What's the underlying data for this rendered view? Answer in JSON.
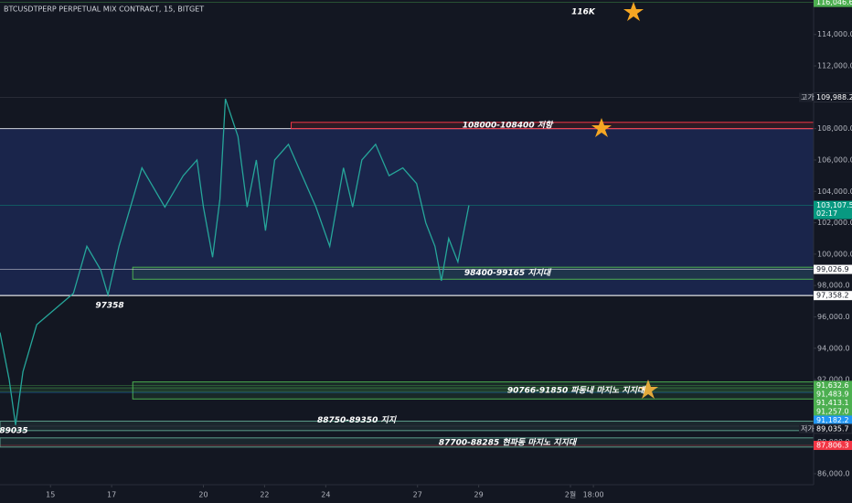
{
  "chart_data": {
    "type": "line",
    "title": "BTCUSDTPERP PERPETUAL MIX CONTRACT, 15, BITGET",
    "x": [
      13.35,
      13.65,
      13.86,
      14.1,
      14.55,
      15.15,
      15.75,
      16.19,
      16.64,
      16.88,
      17.24,
      17.54,
      17.99,
      18.29,
      18.74,
      19.34,
      19.79,
      20.0,
      20.3,
      20.54,
      20.72,
      21.13,
      21.43,
      21.73,
      22.03,
      22.33,
      22.78,
      23.23,
      23.68,
      24.13,
      24.58,
      24.88,
      25.18,
      25.63,
      26.07,
      26.52,
      26.97,
      27.27,
      27.57,
      27.78,
      28.02,
      28.32,
      28.68
    ],
    "series": [
      {
        "color": "#26a69a",
        "values": [
          95000,
          92000,
          89100,
          92500,
          95500,
          96500,
          97500,
          100500,
          99000,
          97400,
          100500,
          102500,
          105500,
          104500,
          103000,
          105000,
          106000,
          103000,
          99800,
          103500,
          109900,
          107500,
          103000,
          106000,
          101500,
          106000,
          107000,
          105000,
          103000,
          100500,
          105500,
          103000,
          106000,
          107000,
          105000,
          105500,
          104500,
          102000,
          100500,
          98300,
          101000,
          99500,
          103107.5
        ]
      }
    ],
    "xlim": [
      13.35,
      39.95
    ],
    "xticks": [
      15,
      17,
      20,
      22,
      24,
      27,
      29,
      {
        "value": 32,
        "label": "2월"
      },
      {
        "value": 32.75,
        "label": "18:00"
      }
    ],
    "ylim": [
      85300,
      116200
    ],
    "yticks": [
      {
        "value": 86000,
        "label": "86,000.0"
      },
      {
        "value": 88000,
        "label": "88,000.0"
      },
      {
        "value": 90000,
        "label": "90,000.0"
      },
      {
        "value": 92000,
        "label": "92,000.0"
      },
      {
        "value": 94000,
        "label": "94,000.0"
      },
      {
        "value": 96000,
        "label": "96,000.0"
      },
      {
        "value": 98000,
        "label": "98,000.0"
      },
      {
        "value": 100000,
        "label": "100,000.0"
      },
      {
        "value": 102000,
        "label": "102,000.0"
      },
      {
        "value": 104000,
        "label": "104,000.0"
      },
      {
        "value": 106000,
        "label": "106,000.0"
      },
      {
        "value": 108000,
        "label": "108,000.0"
      },
      {
        "value": 110000,
        "label": "110,000.0"
      },
      {
        "value": 112000,
        "label": "112,000.0"
      },
      {
        "value": 114000,
        "label": "114,000.0"
      }
    ],
    "range_box": {
      "low": 97358.2,
      "high": 108000
    },
    "zones": [
      {
        "low": 108000,
        "high": 108400,
        "from": 22.87,
        "label": "108000-108400 저항",
        "color": "#f23645"
      },
      {
        "low": 98400,
        "high": 99165,
        "from": 17.69,
        "label": "98400-99165 지지대",
        "color": "#4caf50"
      },
      {
        "low": 90766,
        "high": 91850,
        "from": 17.69,
        "label": "90766-91850  파동내 마지노 지지대",
        "color": "#4caf50"
      },
      {
        "low": 88750,
        "high": 89350,
        "from": 13.35,
        "label": "88750-89350 지지",
        "color": "#5b9c8a"
      },
      {
        "low": 87700,
        "high": 88285,
        "from": 13.35,
        "label": "87700-88285 현파동 마지노 지지대",
        "color": "#5b9c8a"
      }
    ],
    "price_labels": [
      {
        "value": 116046.6,
        "label": "116,046.6",
        "color": "#4caf50"
      },
      {
        "value": 109988.2,
        "label": "109,988.2",
        "color": "#131722",
        "tag": "고가"
      },
      {
        "value": 103107.5,
        "label": "103,107.5",
        "color": "#089981",
        "sub": "02:17"
      },
      {
        "value": 99026.9,
        "label": "99,026.9",
        "color": "#ffffff"
      },
      {
        "value": 97358.2,
        "label": "97,358.2",
        "color": "#ffffff"
      },
      {
        "value": 91632.6,
        "label": "91,632.6",
        "color": "#4caf50"
      },
      {
        "value": 91483.9,
        "label": "91,483.9",
        "color": "#4caf50"
      },
      {
        "value": 91413.1,
        "label": "91,413.1",
        "color": "#4caf50"
      },
      {
        "value": 91257.0,
        "label": "91,257.0",
        "color": "#4caf50"
      },
      {
        "value": 91182.2,
        "label": "91,182.2",
        "color": "#2196f3"
      },
      {
        "value": 89035.7,
        "label": "89,035.7",
        "color": "#131722",
        "tag": "저가"
      },
      {
        "value": 87806.3,
        "label": "87,806.3",
        "color": "#f23645"
      }
    ],
    "annotations": [
      "116K",
      "97358",
      "89035"
    ]
  }
}
